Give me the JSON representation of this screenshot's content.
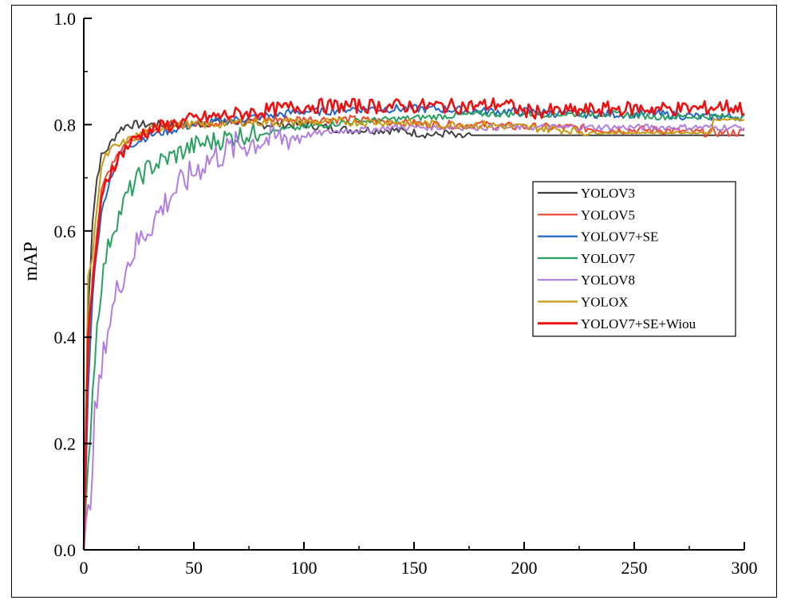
{
  "chart_data": {
    "type": "line",
    "title": "",
    "xlabel": "",
    "ylabel": "mAP",
    "xlim": [
      0,
      300
    ],
    "ylim": [
      0.0,
      1.0
    ],
    "xticks": [
      0,
      50,
      100,
      150,
      200,
      250,
      300
    ],
    "yticks": [
      0.0,
      0.2,
      0.4,
      0.6,
      0.8,
      1.0
    ],
    "xtick_labels": [
      "0",
      "50",
      "100",
      "150",
      "200",
      "250",
      "300"
    ],
    "ytick_labels": [
      "0.0",
      "0.2",
      "0.4",
      "0.6",
      "0.8",
      "1.0"
    ],
    "grid": false,
    "legend_position": "right",
    "series": [
      {
        "name": "YOLOV3",
        "color": "#404040",
        "x": [
          0,
          2,
          4,
          6,
          8,
          10,
          13,
          16,
          20,
          25,
          30,
          40,
          50,
          60,
          70,
          80,
          90,
          100,
          110,
          120,
          130,
          140,
          150,
          160,
          165,
          170,
          175,
          180,
          200,
          250,
          300
        ],
        "y": [
          0.0,
          0.45,
          0.62,
          0.7,
          0.74,
          0.75,
          0.77,
          0.79,
          0.8,
          0.8,
          0.8,
          0.8,
          0.8,
          0.805,
          0.805,
          0.8,
          0.8,
          0.8,
          0.795,
          0.79,
          0.79,
          0.79,
          0.785,
          0.78,
          0.785,
          0.775,
          0.78,
          0.78,
          0.78,
          0.78,
          0.78
        ]
      },
      {
        "name": "YOLOV5",
        "color": "#f04530",
        "x": [
          0,
          2,
          4,
          6,
          8,
          10,
          13,
          16,
          20,
          25,
          30,
          40,
          50,
          60,
          70,
          80,
          90,
          100,
          120,
          140,
          160,
          180,
          200,
          220,
          240,
          260,
          280,
          300
        ],
        "y": [
          0.0,
          0.35,
          0.52,
          0.6,
          0.67,
          0.7,
          0.73,
          0.75,
          0.77,
          0.78,
          0.79,
          0.8,
          0.8,
          0.805,
          0.81,
          0.81,
          0.81,
          0.81,
          0.81,
          0.805,
          0.8,
          0.8,
          0.795,
          0.795,
          0.79,
          0.79,
          0.785,
          0.785
        ]
      },
      {
        "name": "YOLOV7+SE",
        "color": "#1f66c8",
        "x": [
          0,
          2,
          4,
          6,
          8,
          10,
          13,
          16,
          20,
          25,
          30,
          40,
          50,
          60,
          70,
          80,
          90,
          100,
          110,
          120,
          140,
          160,
          180,
          200,
          220,
          240,
          260,
          280,
          300
        ],
        "y": [
          0.0,
          0.3,
          0.48,
          0.57,
          0.63,
          0.67,
          0.71,
          0.74,
          0.76,
          0.77,
          0.78,
          0.79,
          0.8,
          0.805,
          0.81,
          0.815,
          0.82,
          0.825,
          0.825,
          0.83,
          0.83,
          0.83,
          0.825,
          0.825,
          0.82,
          0.82,
          0.82,
          0.815,
          0.815
        ]
      },
      {
        "name": "YOLOV7",
        "color": "#28a060",
        "x": [
          0,
          2,
          4,
          6,
          8,
          10,
          13,
          16,
          20,
          25,
          30,
          40,
          50,
          60,
          70,
          80,
          90,
          100,
          110,
          120,
          140,
          160,
          180,
          200,
          220,
          240,
          260,
          280,
          300
        ],
        "y": [
          0.0,
          0.15,
          0.3,
          0.42,
          0.5,
          0.55,
          0.6,
          0.63,
          0.67,
          0.7,
          0.72,
          0.74,
          0.76,
          0.77,
          0.78,
          0.785,
          0.79,
          0.795,
          0.8,
          0.805,
          0.81,
          0.815,
          0.82,
          0.82,
          0.82,
          0.82,
          0.815,
          0.815,
          0.815
        ]
      },
      {
        "name": "YOLOV8",
        "color": "#b07ee0",
        "x": [
          0,
          3,
          5,
          8,
          10,
          13,
          16,
          20,
          25,
          30,
          35,
          40,
          45,
          50,
          55,
          60,
          70,
          80,
          90,
          100,
          110,
          120,
          130,
          140,
          150,
          160,
          180,
          200,
          220,
          240,
          260,
          280,
          300
        ],
        "y": [
          0.0,
          0.1,
          0.25,
          0.33,
          0.4,
          0.45,
          0.5,
          0.54,
          0.58,
          0.61,
          0.64,
          0.67,
          0.69,
          0.71,
          0.73,
          0.74,
          0.76,
          0.77,
          0.775,
          0.78,
          0.785,
          0.79,
          0.79,
          0.795,
          0.795,
          0.795,
          0.795,
          0.795,
          0.795,
          0.795,
          0.795,
          0.795,
          0.795
        ]
      },
      {
        "name": "YOLOX",
        "color": "#c89a10",
        "x": [
          0,
          2,
          4,
          6,
          8,
          10,
          13,
          16,
          20,
          25,
          30,
          40,
          50,
          60,
          70,
          80,
          100,
          120,
          140,
          160,
          180,
          200,
          220,
          230,
          240,
          250,
          260,
          270,
          280,
          285,
          286,
          290,
          300
        ],
        "y": [
          0.0,
          0.52,
          0.55,
          0.65,
          0.72,
          0.74,
          0.755,
          0.76,
          0.77,
          0.78,
          0.79,
          0.8,
          0.8,
          0.8,
          0.805,
          0.805,
          0.805,
          0.805,
          0.805,
          0.8,
          0.8,
          0.795,
          0.79,
          0.785,
          0.785,
          0.785,
          0.785,
          0.785,
          0.785,
          0.785,
          0.81,
          0.81,
          0.81
        ]
      },
      {
        "name": "YOLOV7+SE+Wiou",
        "color": "#ee1010",
        "x": [
          0,
          2,
          4,
          6,
          8,
          10,
          13,
          16,
          20,
          25,
          30,
          40,
          50,
          60,
          70,
          80,
          90,
          100,
          110,
          120,
          140,
          160,
          180,
          190,
          200,
          220,
          240,
          260,
          280,
          290,
          300
        ],
        "y": [
          0.0,
          0.4,
          0.5,
          0.58,
          0.65,
          0.69,
          0.72,
          0.74,
          0.76,
          0.78,
          0.79,
          0.8,
          0.81,
          0.815,
          0.82,
          0.825,
          0.83,
          0.835,
          0.835,
          0.835,
          0.835,
          0.835,
          0.835,
          0.84,
          0.825,
          0.825,
          0.83,
          0.83,
          0.83,
          0.835,
          0.83
        ]
      }
    ]
  }
}
